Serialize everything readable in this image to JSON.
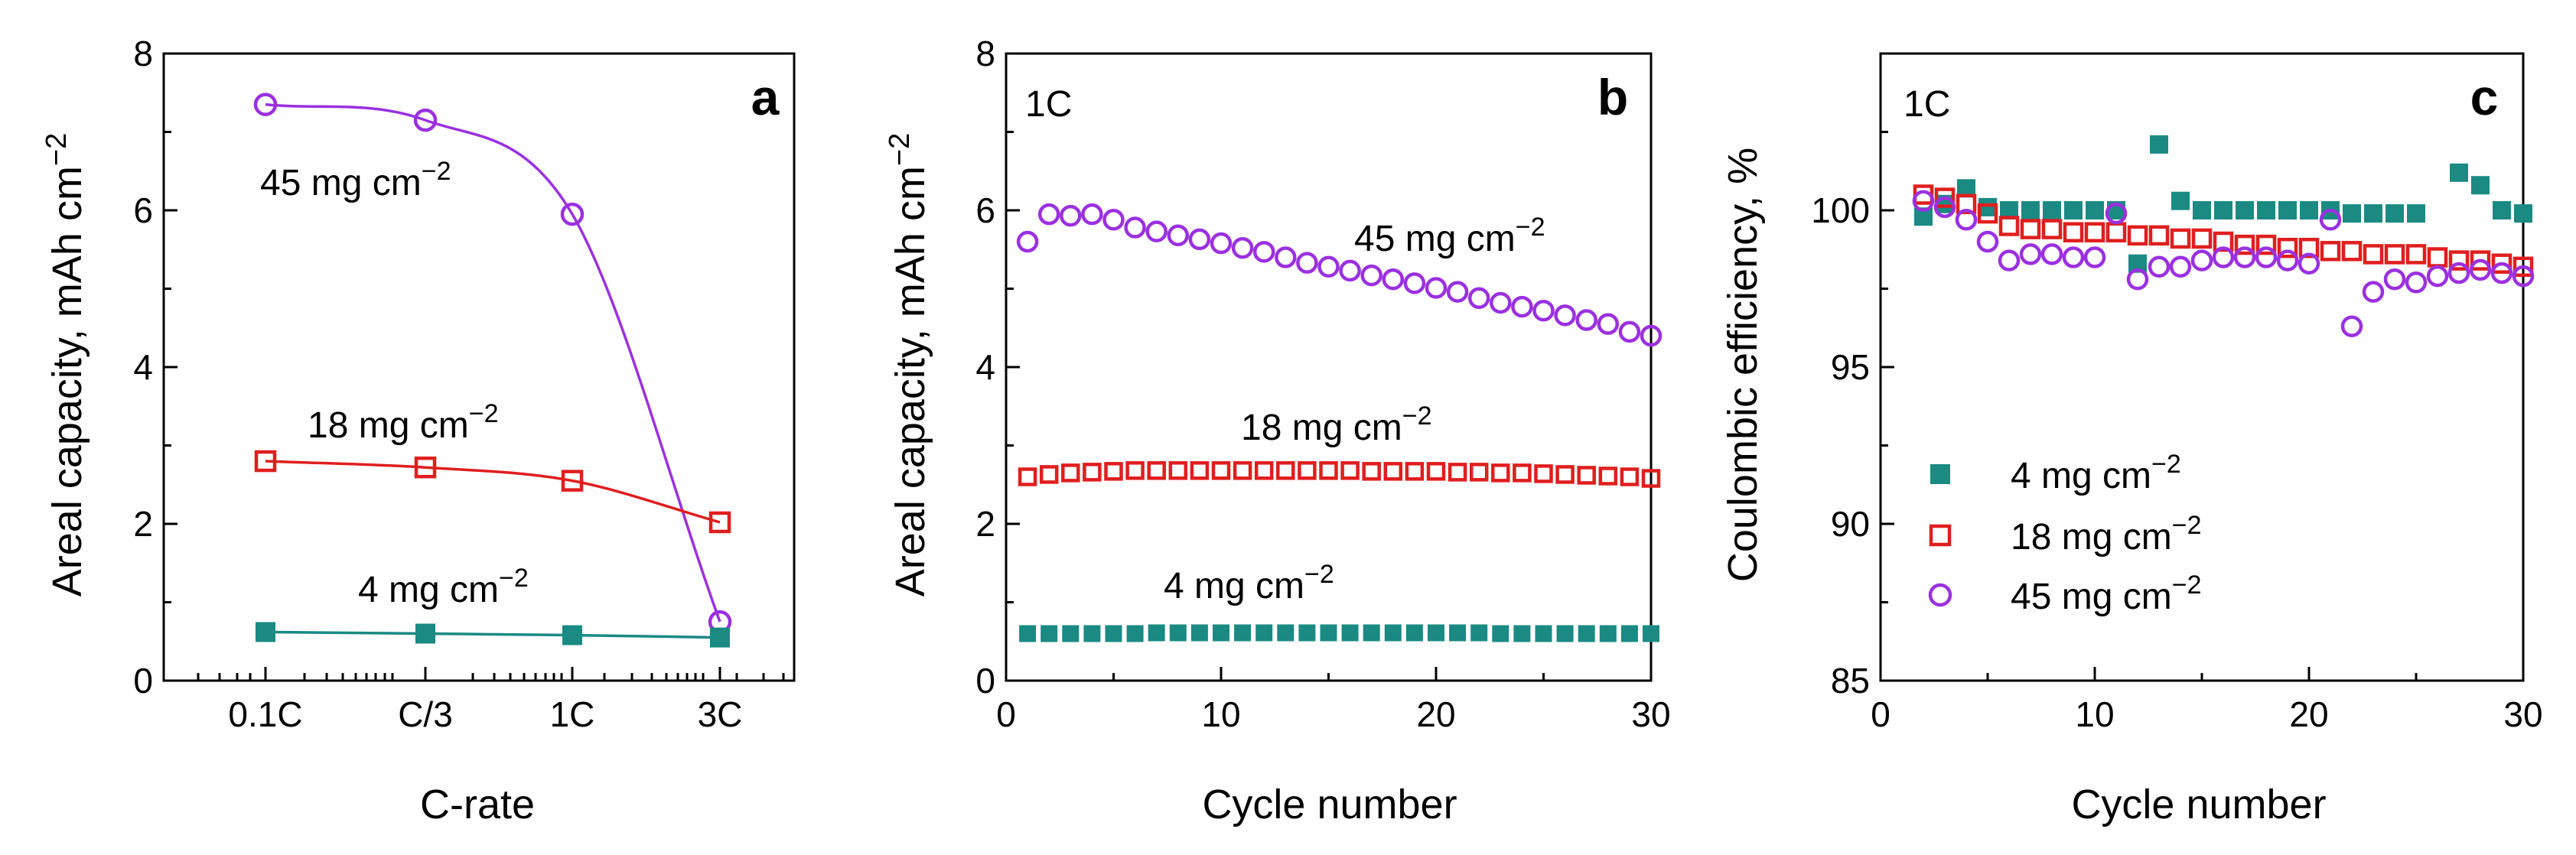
{
  "colors": {
    "teal": "#1a8a83",
    "red": "#e01e1e",
    "purple": "#9b30e0",
    "axis": "#000000"
  },
  "chart_data": [
    {
      "panel": "a",
      "type": "line",
      "xlabel": "C-rate",
      "ylabel": "Areal capacity, mAh cm",
      "ylabel_sup": "−2",
      "ylim": [
        0,
        8
      ],
      "yticks": [
        "0",
        "2",
        "4",
        "6",
        "8"
      ],
      "categories": [
        "0.1C",
        "C/3",
        "1C",
        "3C"
      ],
      "series": [
        {
          "name": "45 mg cm",
          "sup": "−2",
          "marker": "circle",
          "color": "purple",
          "values": [
            7.35,
            7.15,
            5.95,
            0.75
          ]
        },
        {
          "name": "18 mg cm",
          "sup": "−2",
          "marker": "open-square",
          "color": "red",
          "values": [
            2.8,
            2.72,
            2.55,
            2.02
          ]
        },
        {
          "name": "4 mg cm",
          "sup": "−2",
          "marker": "filled-square",
          "color": "teal",
          "values": [
            0.62,
            0.6,
            0.58,
            0.55
          ]
        }
      ]
    },
    {
      "panel": "b",
      "type": "scatter",
      "annotation": "1C",
      "xlabel": "Cycle number",
      "ylabel": "Areal capacity, mAh cm",
      "ylabel_sup": "−2",
      "xlim": [
        0,
        30
      ],
      "ylim": [
        0,
        8
      ],
      "xticks": [
        "0",
        "10",
        "20",
        "30"
      ],
      "yticks": [
        "0",
        "2",
        "4",
        "6",
        "8"
      ],
      "series": [
        {
          "name": "45 mg cm",
          "sup": "−2",
          "marker": "circle",
          "color": "purple",
          "x": [
            1,
            2,
            3,
            4,
            5,
            6,
            7,
            8,
            9,
            10,
            11,
            12,
            13,
            14,
            15,
            16,
            17,
            18,
            19,
            20,
            21,
            22,
            23,
            24,
            25,
            26,
            27,
            28,
            29,
            30
          ],
          "values": [
            5.6,
            5.95,
            5.93,
            5.95,
            5.88,
            5.78,
            5.73,
            5.68,
            5.63,
            5.58,
            5.52,
            5.47,
            5.4,
            5.33,
            5.28,
            5.23,
            5.17,
            5.12,
            5.07,
            5.01,
            4.96,
            4.88,
            4.82,
            4.77,
            4.72,
            4.66,
            4.6,
            4.55,
            4.45,
            4.4
          ]
        },
        {
          "name": "18 mg cm",
          "sup": "−2",
          "marker": "open-square",
          "color": "red",
          "x": [
            1,
            2,
            3,
            4,
            5,
            6,
            7,
            8,
            9,
            10,
            11,
            12,
            13,
            14,
            15,
            16,
            17,
            18,
            19,
            20,
            21,
            22,
            23,
            24,
            25,
            26,
            27,
            28,
            29,
            30
          ],
          "values": [
            2.6,
            2.63,
            2.65,
            2.66,
            2.67,
            2.68,
            2.68,
            2.68,
            2.68,
            2.68,
            2.68,
            2.68,
            2.68,
            2.68,
            2.68,
            2.68,
            2.67,
            2.67,
            2.67,
            2.67,
            2.66,
            2.66,
            2.65,
            2.65,
            2.64,
            2.63,
            2.62,
            2.61,
            2.6,
            2.58
          ]
        },
        {
          "name": "4 mg cm",
          "sup": "−2",
          "marker": "filled-square",
          "color": "teal",
          "x": [
            1,
            2,
            3,
            4,
            5,
            6,
            7,
            8,
            9,
            10,
            11,
            12,
            13,
            14,
            15,
            16,
            17,
            18,
            19,
            20,
            21,
            22,
            23,
            24,
            25,
            26,
            27,
            28,
            29,
            30
          ],
          "values": [
            0.6,
            0.6,
            0.6,
            0.6,
            0.6,
            0.6,
            0.61,
            0.61,
            0.61,
            0.61,
            0.61,
            0.61,
            0.61,
            0.61,
            0.61,
            0.61,
            0.61,
            0.61,
            0.61,
            0.61,
            0.61,
            0.61,
            0.6,
            0.6,
            0.6,
            0.6,
            0.6,
            0.6,
            0.6,
            0.6
          ]
        }
      ]
    },
    {
      "panel": "c",
      "type": "scatter",
      "annotation": "1C",
      "xlabel": "Cycle number",
      "ylabel": "Coulombic efficiency, %",
      "xlim": [
        0,
        30
      ],
      "ylim": [
        85,
        105
      ],
      "xticks": [
        "0",
        "10",
        "20",
        "30"
      ],
      "yticks": [
        "85",
        "90",
        "95",
        "100"
      ],
      "legend_position": "bottom-left",
      "series": [
        {
          "name": "4 mg cm",
          "sup": "−2",
          "marker": "filled-square",
          "color": "teal",
          "x": [
            2,
            3,
            4,
            5,
            6,
            7,
            8,
            9,
            10,
            11,
            12,
            13,
            14,
            15,
            16,
            17,
            18,
            19,
            20,
            21,
            22,
            23,
            24,
            25,
            26,
            27,
            28,
            29,
            30
          ],
          "values": [
            99.8,
            100.2,
            100.7,
            100.1,
            100.0,
            100.0,
            100.0,
            100.0,
            100.0,
            100.0,
            98.3,
            102.1,
            100.3,
            100.0,
            100.0,
            100.0,
            100.0,
            100.0,
            100.0,
            100.0,
            99.9,
            99.9,
            99.9,
            99.9,
            null,
            101.2,
            100.8,
            100.0,
            99.9
          ]
        },
        {
          "name": "18 mg cm",
          "sup": "−2",
          "marker": "open-square",
          "color": "red",
          "x": [
            2,
            3,
            4,
            5,
            6,
            7,
            8,
            9,
            10,
            11,
            12,
            13,
            14,
            15,
            16,
            17,
            18,
            19,
            20,
            21,
            22,
            23,
            24,
            25,
            26,
            27,
            28,
            29,
            30
          ],
          "values": [
            100.5,
            100.4,
            100.2,
            99.9,
            99.5,
            99.4,
            99.4,
            99.3,
            99.3,
            99.3,
            99.2,
            99.2,
            99.1,
            99.1,
            99.0,
            98.9,
            98.9,
            98.8,
            98.8,
            98.7,
            98.7,
            98.6,
            98.6,
            98.6,
            98.5,
            98.4,
            98.4,
            98.3,
            98.2
          ]
        },
        {
          "name": "45 mg cm",
          "sup": "−2",
          "marker": "circle",
          "color": "purple",
          "x": [
            2,
            3,
            4,
            5,
            6,
            7,
            8,
            9,
            10,
            11,
            12,
            13,
            14,
            15,
            16,
            17,
            18,
            19,
            20,
            21,
            22,
            23,
            24,
            25,
            26,
            27,
            28,
            29,
            30
          ],
          "values": [
            100.3,
            100.1,
            99.7,
            99.0,
            98.4,
            98.6,
            98.6,
            98.5,
            98.5,
            99.9,
            97.8,
            98.2,
            98.2,
            98.4,
            98.5,
            98.5,
            98.5,
            98.4,
            98.3,
            99.7,
            96.3,
            97.4,
            97.8,
            97.7,
            97.9,
            98.0,
            98.1,
            98.0,
            97.9
          ]
        }
      ]
    }
  ]
}
